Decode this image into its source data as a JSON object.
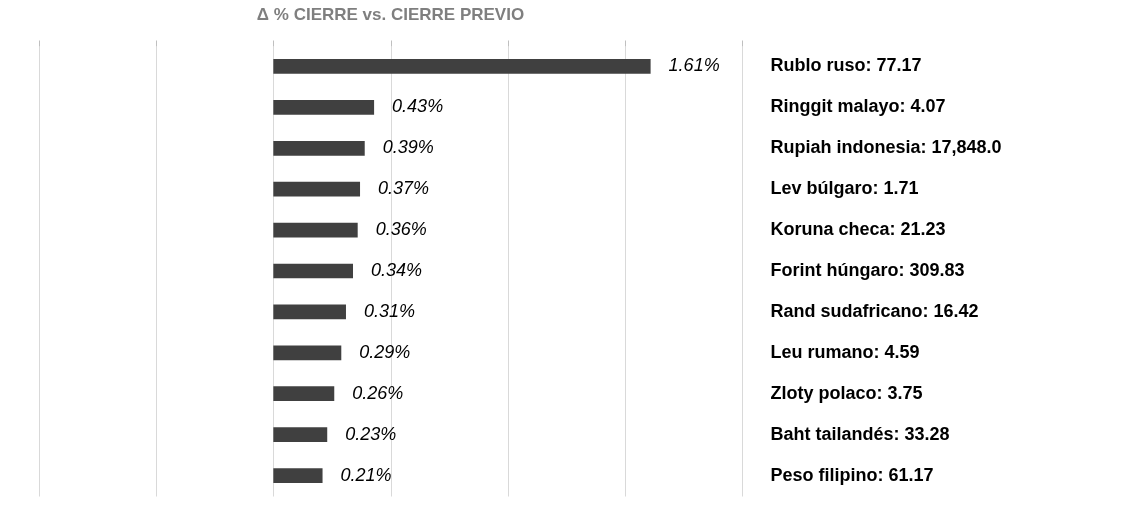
{
  "chart_data": {
    "type": "bar",
    "orientation": "horizontal",
    "title": "Δ % CIERRE vs. CIERRE PREVIO",
    "categories": [
      "Rublo ruso: 77.17",
      "Ringgit malayo: 4.07",
      "Rupiah indonesia: 17,848.0",
      "Lev búlgaro: 1.71",
      "Koruna checa: 21.23",
      "Forint húngaro: 309.83",
      "Rand sudafricano: 16.42",
      "Leu rumano: 4.59",
      "Zloty polaco: 3.75",
      "Baht tailandés: 33.28",
      "Peso filipino: 61.17"
    ],
    "values": [
      1.61,
      0.43,
      0.39,
      0.37,
      0.36,
      0.34,
      0.31,
      0.29,
      0.26,
      0.23,
      0.21
    ],
    "value_labels": [
      "1.61%",
      "0.43%",
      "0.39%",
      "0.37%",
      "0.36%",
      "0.34%",
      "0.31%",
      "0.29%",
      "0.26%",
      "0.23%",
      "0.21%"
    ],
    "color": "#404040",
    "xlim": [
      -1,
      2
    ],
    "xticks": [
      {
        "value": -1,
        "label": null
      },
      {
        "value": -0.5,
        "label": null
      },
      {
        "value": 0,
        "label": null
      },
      {
        "value": 0.5,
        "label": null
      },
      {
        "value": 1,
        "label": null
      },
      {
        "value": 1.5,
        "label": null
      },
      {
        "value": 2,
        "label": null
      }
    ],
    "grid": true
  }
}
